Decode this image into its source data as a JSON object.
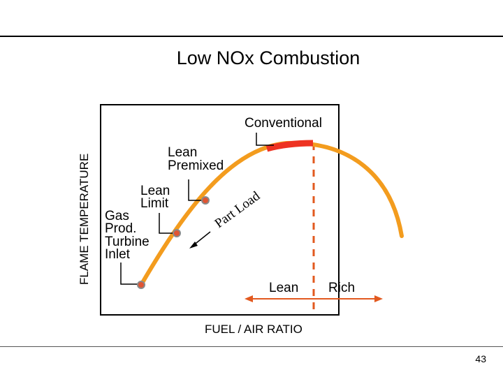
{
  "title": "Low NOx Combustion",
  "page_number": "43",
  "axes": {
    "y_label": "FLAME TEMPERATURE",
    "x_label": "FUEL / AIR RATIO"
  },
  "labels": {
    "conventional": "Conventional",
    "lean_premixed_1": "Lean",
    "lean_premixed_2": "Premixed",
    "lean_limit_1": "Lean",
    "lean_limit_2": "Limit",
    "gas_1": "Gas",
    "gas_2": "Prod.",
    "gas_3": "Turbine",
    "gas_4": "Inlet",
    "part_load": "Part Load",
    "lean": "Lean",
    "rich": "Rich"
  },
  "colors": {
    "curve": "#f39c1e",
    "conventional_band": "#ee3322",
    "marker_fill": "#e05533",
    "marker_stroke": "#8a8a8a",
    "stoichiometric_line": "#e2591f",
    "lean_rich_arrow": "#e2591f"
  }
}
